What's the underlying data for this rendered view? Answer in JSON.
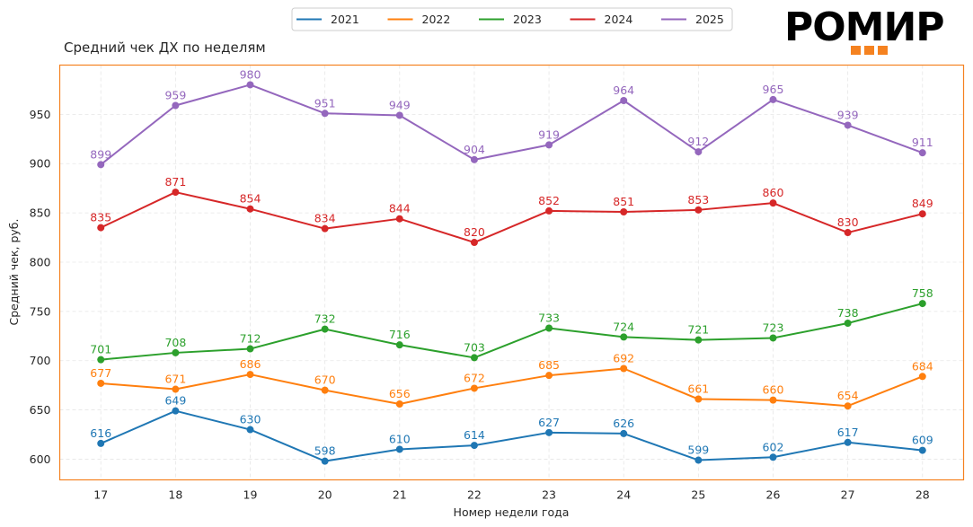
{
  "logo": {
    "text": "РОМИР",
    "accent_color": "#f58220"
  },
  "frame_color": "#f58220",
  "chart_data": {
    "type": "line",
    "title": "Средний чек ДХ по неделям",
    "xlabel": "Номер недели года",
    "ylabel": "Средний чек, руб.",
    "x": [
      17,
      18,
      19,
      20,
      21,
      22,
      23,
      24,
      25,
      26,
      27,
      28
    ],
    "xticks": [
      "17",
      "18",
      "19",
      "20",
      "21",
      "22",
      "23",
      "24",
      "25",
      "26",
      "27",
      "28"
    ],
    "yticks": [
      600,
      650,
      700,
      750,
      800,
      850,
      900,
      950
    ],
    "ylim": [
      579,
      1000
    ],
    "xlim": [
      16.45,
      28.55
    ],
    "grid": true,
    "legend": "top-center",
    "markers": true,
    "data_labels": true,
    "series": [
      {
        "name": "2021",
        "color": "#1f77b4",
        "values": [
          616,
          649,
          630,
          598,
          610,
          614,
          627,
          626,
          599,
          602,
          617,
          609
        ]
      },
      {
        "name": "2022",
        "color": "#ff7f0e",
        "values": [
          677,
          671,
          686,
          670,
          656,
          672,
          685,
          692,
          661,
          660,
          654,
          684
        ]
      },
      {
        "name": "2023",
        "color": "#2ca02c",
        "values": [
          701,
          708,
          712,
          732,
          716,
          703,
          733,
          724,
          721,
          723,
          738,
          758
        ]
      },
      {
        "name": "2024",
        "color": "#d62728",
        "values": [
          835,
          871,
          854,
          834,
          844,
          820,
          852,
          851,
          853,
          860,
          830,
          849
        ]
      },
      {
        "name": "2025",
        "color": "#9467bd",
        "values": [
          899,
          959,
          980,
          951,
          949,
          904,
          919,
          964,
          912,
          965,
          939,
          911
        ]
      }
    ]
  }
}
